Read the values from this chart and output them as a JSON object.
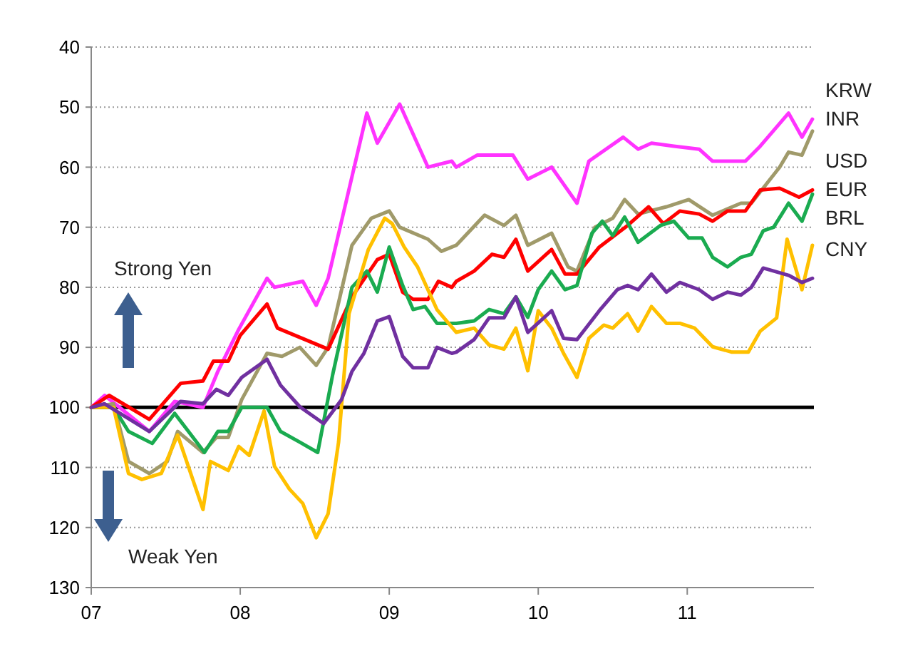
{
  "chart_data": {
    "type": "line",
    "xlim": [
      7,
      11.85
    ],
    "xticks": [
      {
        "value": 7,
        "label": "07"
      },
      {
        "value": 8,
        "label": "08"
      },
      {
        "value": 9,
        "label": "09"
      },
      {
        "value": 10,
        "label": "10"
      },
      {
        "value": 11,
        "label": "11"
      }
    ],
    "ylim": [
      130,
      40
    ],
    "yticks": [
      40,
      50,
      60,
      70,
      80,
      90,
      100,
      110,
      120,
      130
    ],
    "grid": "y",
    "legend": false,
    "marker": "none",
    "line_style": "solid",
    "ref_lines": [
      {
        "axis": "y",
        "value": 100,
        "color": "#000000"
      }
    ],
    "annotations": [
      "Strong Yen",
      "Weak Yen"
    ],
    "series": [
      {
        "name": "KRW",
        "color": "#ff33ff",
        "x": [
          7,
          7.09,
          7.39,
          7.56,
          7.75,
          7.85,
          7.99,
          8.18,
          8.23,
          8.42,
          8.51,
          8.59,
          8.85,
          8.92,
          9.07,
          9.26,
          9.42,
          9.45,
          9.59,
          9.83,
          9.93,
          10.09,
          10.26,
          10.34,
          10.57,
          10.67,
          10.76,
          10.91,
          11.08,
          11.17,
          11.39,
          11.49,
          11.68,
          11.77,
          11.84
        ],
        "values": [
          100,
          98,
          104,
          99,
          100,
          94,
          87,
          78.5,
          80,
          79,
          83,
          78.5,
          51,
          56,
          49.5,
          60,
          59,
          60,
          58,
          58,
          62,
          60,
          66,
          59,
          55,
          57,
          56,
          56.5,
          57,
          59,
          59,
          56.5,
          51,
          55,
          52
        ]
      },
      {
        "name": "INR",
        "color": "#a09a6a",
        "x": [
          7,
          7.15,
          7.25,
          7.39,
          7.51,
          7.58,
          7.75,
          7.84,
          7.92,
          8.01,
          8.18,
          8.28,
          8.4,
          8.51,
          8.59,
          8.75,
          8.88,
          9,
          9.07,
          9.26,
          9.35,
          9.45,
          9.64,
          9.77,
          9.85,
          9.93,
          10.09,
          10.2,
          10.26,
          10.38,
          10.5,
          10.58,
          10.67,
          10.86,
          11.01,
          11.17,
          11.36,
          11.43,
          11.62,
          11.68,
          11.77,
          11.84
        ],
        "values": [
          100,
          99.4,
          109,
          111,
          109,
          104,
          107.5,
          105,
          105,
          98.7,
          91,
          91.5,
          90,
          93,
          90,
          73,
          68.5,
          67.3,
          70,
          72,
          74,
          73,
          68,
          69.7,
          68,
          73,
          71,
          76.6,
          77.3,
          70,
          68.5,
          65.4,
          67.8,
          66.6,
          65.4,
          68,
          66,
          66,
          60,
          57.5,
          58,
          54
        ]
      },
      {
        "name": "USD",
        "color": "#ff0000",
        "x": [
          7,
          7.12,
          7.39,
          7.6,
          7.75,
          7.82,
          7.92,
          8,
          8.18,
          8.25,
          8.59,
          8.75,
          8.92,
          9,
          9.09,
          9.16,
          9.26,
          9.33,
          9.42,
          9.45,
          9.57,
          9.69,
          9.77,
          9.85,
          9.93,
          10.09,
          10.18,
          10.26,
          10.41,
          10.6,
          10.74,
          10.84,
          10.95,
          11.08,
          11.17,
          11.27,
          11.39,
          11.49,
          11.62,
          11.75,
          11.84
        ],
        "values": [
          100,
          98,
          102,
          96,
          95.6,
          92.3,
          92.3,
          88,
          82.8,
          86.8,
          90.3,
          81.6,
          75.4,
          74.5,
          80.8,
          82,
          82,
          79,
          80,
          79,
          77.3,
          74.5,
          75,
          72,
          77.3,
          73.7,
          77.8,
          77.8,
          73.3,
          69.7,
          66.6,
          69.4,
          67.3,
          67.8,
          69,
          67.3,
          67.3,
          63.8,
          63.5,
          65,
          63.8
        ]
      },
      {
        "name": "EUR",
        "color": "#1aab50",
        "x": [
          7,
          7.15,
          7.25,
          7.41,
          7.56,
          7.76,
          7.85,
          7.92,
          8.01,
          8.18,
          8.27,
          8.4,
          8.52,
          8.62,
          8.75,
          8.85,
          8.92,
          9,
          9.09,
          9.16,
          9.24,
          9.32,
          9.42,
          9.45,
          9.57,
          9.67,
          9.77,
          9.85,
          9.93,
          10,
          10.09,
          10.18,
          10.26,
          10.36,
          10.43,
          10.5,
          10.58,
          10.67,
          10.82,
          10.91,
          11.01,
          11.1,
          11.17,
          11.27,
          11.36,
          11.43,
          11.51,
          11.58,
          11.68,
          11.77,
          11.84
        ],
        "values": [
          100,
          100,
          104,
          106,
          101,
          107.5,
          104,
          104,
          100,
          100,
          104,
          105.8,
          107.5,
          94.6,
          80,
          77.3,
          80.8,
          73.3,
          79.7,
          83.7,
          83.2,
          86,
          86,
          86,
          85.6,
          83.7,
          84.4,
          81.6,
          85,
          80.4,
          77.3,
          80.4,
          79.7,
          71,
          69,
          71.4,
          68.3,
          72.5,
          69.7,
          69,
          71.8,
          71.8,
          75,
          76.6,
          75,
          74.5,
          70.6,
          70,
          66,
          69,
          64.5
        ]
      },
      {
        "name": "BRL",
        "color": "#ffc000",
        "x": [
          7,
          7.15,
          7.25,
          7.34,
          7.47,
          7.58,
          7.75,
          7.8,
          7.92,
          7.99,
          8.06,
          8.16,
          8.23,
          8.33,
          8.42,
          8.51,
          8.59,
          8.66,
          8.73,
          8.86,
          8.97,
          9.02,
          9.1,
          9.19,
          9.32,
          9.45,
          9.57,
          9.67,
          9.77,
          9.85,
          9.93,
          10,
          10.09,
          10.17,
          10.26,
          10.34,
          10.44,
          10.5,
          10.6,
          10.67,
          10.76,
          10.86,
          10.95,
          11.05,
          11.17,
          11.3,
          11.41,
          11.49,
          11.6,
          11.67,
          11.77,
          11.84
        ],
        "values": [
          100,
          100,
          111,
          112,
          111,
          104.6,
          117,
          109,
          110.5,
          106.5,
          108,
          100.6,
          109.8,
          113.6,
          116,
          121.7,
          117.7,
          105.8,
          84.4,
          73.7,
          68.5,
          69.4,
          73.3,
          76.6,
          83.7,
          87.5,
          86.8,
          89.6,
          90.3,
          86.8,
          93.9,
          83.9,
          86.8,
          91,
          95,
          88.5,
          86.3,
          86.8,
          84.4,
          87.3,
          83.2,
          86,
          86,
          86.8,
          89.9,
          90.8,
          90.8,
          87.3,
          85.1,
          72,
          80.4,
          73
        ]
      },
      {
        "name": "CNY",
        "color": "#7030a0",
        "x": [
          7,
          7.09,
          7.39,
          7.6,
          7.75,
          7.84,
          7.92,
          8.01,
          8.18,
          8.27,
          8.4,
          8.56,
          8.68,
          8.75,
          8.83,
          8.92,
          9,
          9.09,
          9.16,
          9.26,
          9.32,
          9.42,
          9.45,
          9.57,
          9.67,
          9.77,
          9.85,
          9.93,
          10.09,
          10.17,
          10.26,
          10.41,
          10.53,
          10.6,
          10.67,
          10.76,
          10.86,
          10.95,
          11.08,
          11.17,
          11.27,
          11.36,
          11.43,
          11.51,
          11.68,
          11.77,
          11.84
        ],
        "values": [
          100,
          99.4,
          104,
          99,
          99.4,
          97,
          98,
          95,
          92,
          96.3,
          99.9,
          102.7,
          98.7,
          94,
          91,
          85.6,
          84.9,
          91.5,
          93.4,
          93.4,
          90,
          91,
          90.8,
          88.7,
          85.1,
          85.1,
          81.6,
          87.5,
          83.9,
          88.5,
          88.7,
          83.9,
          80.4,
          79.7,
          80.4,
          77.8,
          80.8,
          79.2,
          80.4,
          82,
          80.8,
          81.3,
          80,
          76.8,
          78,
          79.2,
          78.5
        ]
      }
    ]
  }
}
